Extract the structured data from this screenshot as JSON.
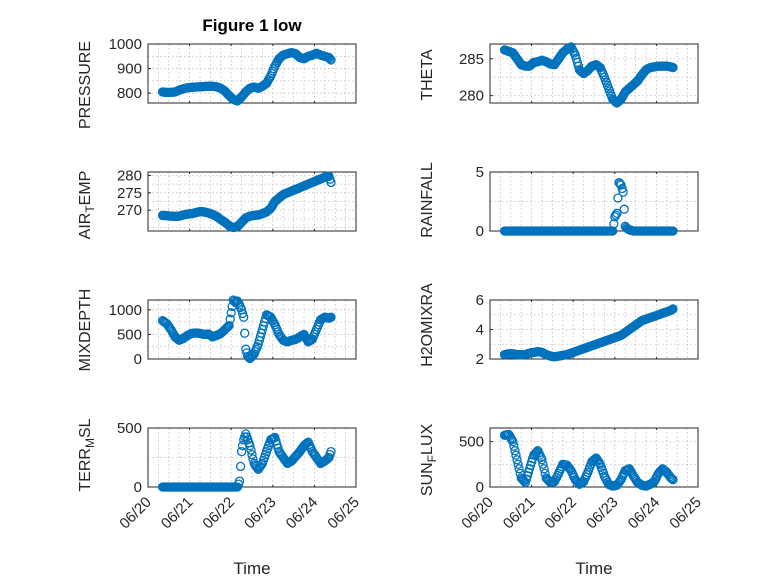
{
  "figure": {
    "title": "Figure 1 low",
    "marker_color": "#0072BD",
    "xlabel": "Time",
    "xtick_labels": [
      "06/20",
      "06/21",
      "06/22",
      "06/23",
      "06/24",
      "06/25"
    ]
  },
  "chart_data": [
    {
      "type": "scatter",
      "title": "Figure 1 low",
      "ylabel": "PRESSURE",
      "xlim": [
        0,
        5
      ],
      "ylim": [
        760,
        1000
      ],
      "yticks": [
        800,
        900,
        1000
      ],
      "ytick_labels": [
        "800",
        "900",
        "1000"
      ],
      "grid": true,
      "xtick_labels_shown": false,
      "x": [
        0.35,
        0.45,
        0.55,
        0.65,
        0.75,
        0.85,
        0.95,
        1.05,
        1.15,
        1.25,
        1.35,
        1.45,
        1.55,
        1.65,
        1.75,
        1.85,
        1.95,
        2.05,
        2.15,
        2.25,
        2.35,
        2.45,
        2.55,
        2.65,
        2.75,
        2.85,
        2.95,
        3.05,
        3.15,
        3.25,
        3.35,
        3.45,
        3.55,
        3.65,
        3.75,
        3.85,
        3.95,
        4.05,
        4.15,
        4.25,
        4.35,
        4.4
      ],
      "y": [
        805,
        803,
        803,
        805,
        812,
        818,
        822,
        824,
        825,
        826,
        827,
        828,
        828,
        826,
        820,
        808,
        790,
        775,
        768,
        785,
        805,
        820,
        825,
        820,
        828,
        840,
        870,
        910,
        940,
        955,
        960,
        965,
        960,
        945,
        940,
        950,
        955,
        962,
        955,
        950,
        945,
        935
      ]
    },
    {
      "type": "scatter",
      "ylabel": "THETA",
      "xlim": [
        0,
        5
      ],
      "ylim": [
        279,
        287
      ],
      "yticks": [
        280,
        285
      ],
      "ytick_labels": [
        "280",
        "285"
      ],
      "grid": true,
      "xtick_labels_shown": false,
      "x": [
        0.35,
        0.45,
        0.55,
        0.65,
        0.75,
        0.85,
        0.95,
        1.05,
        1.15,
        1.25,
        1.35,
        1.45,
        1.55,
        1.65,
        1.75,
        1.85,
        1.95,
        2.05,
        2.15,
        2.25,
        2.35,
        2.45,
        2.55,
        2.65,
        2.75,
        2.85,
        2.95,
        3.05,
        3.15,
        3.25,
        3.35,
        3.45,
        3.55,
        3.65,
        3.75,
        3.85,
        3.95,
        4.05,
        4.15,
        4.25,
        4.35,
        4.4
      ],
      "y": [
        286.2,
        286.0,
        285.8,
        285.0,
        284.2,
        284.0,
        284.0,
        284.5,
        284.6,
        284.8,
        284.6,
        284.3,
        284.2,
        285.0,
        285.8,
        286.3,
        286.6,
        285.5,
        283.5,
        283.0,
        283.4,
        284.0,
        284.2,
        283.8,
        282.5,
        281.0,
        279.5,
        279.0,
        279.5,
        280.5,
        281.0,
        281.5,
        282.0,
        282.8,
        283.5,
        283.8,
        283.9,
        284.0,
        284.0,
        284.0,
        283.9,
        283.8
      ]
    },
    {
      "type": "scatter",
      "ylabel": "AIR_TEMP",
      "xlim": [
        0,
        5
      ],
      "ylim": [
        264,
        281
      ],
      "yticks": [
        270,
        275,
        280
      ],
      "ytick_labels": [
        "270",
        "275",
        "280"
      ],
      "grid": true,
      "xtick_labels_shown": false,
      "x": [
        0.35,
        0.45,
        0.55,
        0.65,
        0.75,
        0.85,
        0.95,
        1.05,
        1.15,
        1.25,
        1.35,
        1.45,
        1.55,
        1.65,
        1.75,
        1.85,
        1.95,
        2.05,
        2.15,
        2.25,
        2.35,
        2.45,
        2.55,
        2.65,
        2.75,
        2.85,
        2.95,
        3.05,
        3.15,
        3.25,
        3.35,
        3.45,
        3.55,
        3.65,
        3.75,
        3.85,
        3.95,
        4.05,
        4.15,
        4.25,
        4.35,
        4.4
      ],
      "y": [
        268.5,
        268.4,
        268.3,
        268.2,
        268.3,
        268.6,
        268.9,
        269.0,
        269.3,
        269.6,
        269.5,
        269.2,
        268.8,
        268.2,
        267.3,
        266.5,
        265.5,
        265.0,
        265.3,
        266.5,
        267.8,
        268.3,
        268.5,
        268.6,
        269.0,
        269.5,
        270.5,
        272.5,
        273.5,
        274.5,
        275.0,
        275.5,
        276.0,
        276.5,
        277.0,
        277.5,
        278.0,
        278.5,
        279.0,
        279.5,
        279.8,
        278.0
      ]
    },
    {
      "type": "scatter",
      "ylabel": "RAINFALL",
      "xlim": [
        0,
        5
      ],
      "ylim": [
        0,
        5
      ],
      "yticks": [
        0,
        5
      ],
      "ytick_labels": [
        "0",
        "5"
      ],
      "grid": true,
      "xtick_labels_shown": false,
      "x": [
        0.35,
        0.45,
        0.55,
        0.65,
        0.75,
        0.85,
        0.95,
        1.05,
        1.15,
        1.25,
        1.35,
        1.45,
        1.55,
        1.65,
        1.75,
        1.85,
        1.95,
        2.05,
        2.15,
        2.25,
        2.35,
        2.45,
        2.55,
        2.65,
        2.75,
        2.85,
        2.95,
        3.0,
        3.05,
        3.1,
        3.15,
        3.2,
        3.25,
        3.3,
        3.35,
        3.45,
        3.55,
        3.65,
        3.75,
        3.85,
        3.95,
        4.05,
        4.15,
        4.25,
        4.35,
        4.4
      ],
      "y": [
        0,
        0,
        0,
        0,
        0,
        0,
        0,
        0,
        0,
        0,
        0,
        0,
        0,
        0,
        0,
        0,
        0,
        0,
        0,
        0,
        0,
        0,
        0,
        0,
        0,
        0,
        0,
        1.2,
        1.5,
        4.1,
        3.9,
        3.3,
        0.4,
        0.2,
        0.1,
        0,
        0,
        0,
        0,
        0,
        0,
        0,
        0,
        0,
        0,
        0
      ]
    },
    {
      "type": "scatter",
      "ylabel": "MIXDEPTH",
      "xlim": [
        0,
        5
      ],
      "ylim": [
        0,
        1200
      ],
      "yticks": [
        0,
        500,
        1000
      ],
      "ytick_labels": [
        "0",
        "500",
        "1000"
      ],
      "grid": true,
      "xtick_labels_shown": false,
      "x": [
        0.35,
        0.45,
        0.55,
        0.65,
        0.75,
        0.85,
        0.95,
        1.05,
        1.15,
        1.25,
        1.35,
        1.45,
        1.55,
        1.65,
        1.75,
        1.85,
        1.95,
        2.05,
        2.1,
        2.15,
        2.2,
        2.25,
        2.3,
        2.35,
        2.4,
        2.45,
        2.55,
        2.65,
        2.75,
        2.85,
        2.95,
        3.05,
        3.15,
        3.25,
        3.35,
        3.45,
        3.55,
        3.65,
        3.75,
        3.85,
        3.95,
        4.05,
        4.15,
        4.25,
        4.35,
        4.4
      ],
      "y": [
        780,
        720,
        600,
        450,
        380,
        420,
        480,
        520,
        530,
        520,
        500,
        510,
        450,
        480,
        520,
        600,
        680,
        1200,
        1150,
        1180,
        1100,
        1000,
        850,
        200,
        50,
        10,
        100,
        300,
        600,
        900,
        850,
        700,
        500,
        380,
        350,
        380,
        400,
        450,
        500,
        350,
        400,
        600,
        800,
        850,
        830,
        850
      ]
    },
    {
      "type": "scatter",
      "ylabel": "H2OMIXRA",
      "xlim": [
        0,
        5
      ],
      "ylim": [
        2,
        6
      ],
      "yticks": [
        2,
        4,
        6
      ],
      "ytick_labels": [
        "2",
        "4",
        "6"
      ],
      "grid": true,
      "xtick_labels_shown": false,
      "x": [
        0.35,
        0.45,
        0.55,
        0.65,
        0.75,
        0.85,
        0.95,
        1.05,
        1.15,
        1.25,
        1.35,
        1.45,
        1.55,
        1.65,
        1.75,
        1.85,
        1.95,
        2.05,
        2.15,
        2.25,
        2.35,
        2.45,
        2.55,
        2.65,
        2.75,
        2.85,
        2.95,
        3.05,
        3.15,
        3.25,
        3.35,
        3.45,
        3.55,
        3.65,
        3.75,
        3.85,
        3.95,
        4.05,
        4.15,
        4.25,
        4.35,
        4.4
      ],
      "y": [
        2.3,
        2.35,
        2.35,
        2.3,
        2.3,
        2.3,
        2.4,
        2.45,
        2.5,
        2.45,
        2.3,
        2.2,
        2.15,
        2.2,
        2.25,
        2.3,
        2.4,
        2.5,
        2.6,
        2.7,
        2.8,
        2.9,
        3.0,
        3.1,
        3.2,
        3.3,
        3.4,
        3.5,
        3.6,
        3.8,
        4.0,
        4.2,
        4.4,
        4.6,
        4.7,
        4.8,
        4.9,
        5.0,
        5.1,
        5.2,
        5.3,
        5.4
      ]
    },
    {
      "type": "scatter",
      "ylabel": "TERR_MSL",
      "xlim": [
        0,
        5
      ],
      "ylim": [
        0,
        500
      ],
      "yticks": [
        0,
        500
      ],
      "ytick_labels": [
        "0",
        "500"
      ],
      "grid": true,
      "xtick_labels_shown": true,
      "x": [
        0.35,
        0.45,
        0.55,
        0.65,
        0.75,
        0.85,
        0.95,
        1.05,
        1.15,
        1.25,
        1.35,
        1.45,
        1.55,
        1.65,
        1.75,
        1.85,
        1.95,
        2.05,
        2.15,
        2.2,
        2.25,
        2.3,
        2.35,
        2.45,
        2.55,
        2.65,
        2.75,
        2.85,
        2.95,
        3.05,
        3.15,
        3.25,
        3.35,
        3.45,
        3.55,
        3.65,
        3.75,
        3.85,
        3.95,
        4.05,
        4.15,
        4.25,
        4.35,
        4.4
      ],
      "y": [
        0,
        0,
        0,
        0,
        0,
        0,
        0,
        0,
        0,
        0,
        0,
        0,
        0,
        0,
        0,
        0,
        0,
        0,
        0,
        50,
        300,
        400,
        450,
        350,
        200,
        150,
        200,
        300,
        400,
        420,
        300,
        250,
        200,
        220,
        260,
        300,
        350,
        380,
        300,
        250,
        200,
        220,
        250,
        300
      ]
    },
    {
      "type": "scatter",
      "ylabel": "SUN_FLUX",
      "xlim": [
        0,
        5
      ],
      "ylim": [
        0,
        650
      ],
      "yticks": [
        0,
        500
      ],
      "ytick_labels": [
        "0",
        "500"
      ],
      "grid": true,
      "xtick_labels_shown": true,
      "x": [
        0.35,
        0.45,
        0.55,
        0.65,
        0.75,
        0.85,
        0.95,
        1.05,
        1.15,
        1.25,
        1.35,
        1.45,
        1.55,
        1.65,
        1.75,
        1.85,
        1.95,
        2.05,
        2.15,
        2.25,
        2.35,
        2.45,
        2.55,
        2.65,
        2.75,
        2.85,
        2.95,
        3.05,
        3.15,
        3.25,
        3.35,
        3.45,
        3.55,
        3.65,
        3.75,
        3.85,
        3.95,
        4.05,
        4.15,
        4.25,
        4.35,
        4.4
      ],
      "y": [
        570,
        580,
        500,
        300,
        100,
        50,
        200,
        350,
        400,
        300,
        100,
        50,
        60,
        150,
        250,
        240,
        180,
        80,
        30,
        60,
        160,
        280,
        320,
        250,
        120,
        30,
        10,
        20,
        80,
        180,
        200,
        120,
        50,
        20,
        10,
        30,
        60,
        150,
        200,
        160,
        100,
        80
      ]
    }
  ]
}
